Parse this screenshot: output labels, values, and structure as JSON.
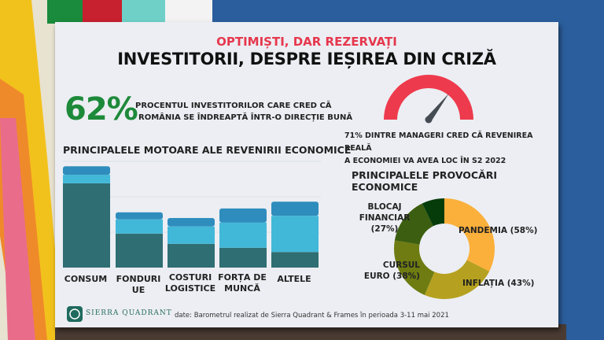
{
  "header": {
    "subtitle": "OPTIMIȘTI, DAR REZERVAȚI",
    "title": "INVESTITORII, DESPRE IEȘIREA DIN CRIZĂ"
  },
  "stat": {
    "value": "62%",
    "line1": "PROCENTUL INVESTITORILOR CARE CRED CĂ",
    "line2": "ROMÂNIA SE ÎNDREAPTĂ ÎNTR-O DIRECȚIE BUNĂ"
  },
  "gauge": {
    "value_percent": 71,
    "line1": "71% DINTRE MANAGERI CRED CĂ REVENIREA REALĂ",
    "line2": "A ECONOMIEI VA AVEA LOC ÎN  S2 2022",
    "color": "#ee3a4d",
    "needle_color": "#454b52"
  },
  "footer": {
    "logo_text": "SIERRA QUADRANT",
    "source": "date:  Barometrul realizat de Sierra Quadrant & Frames în perioada 3-11 mai 2021"
  },
  "chart_data": [
    {
      "type": "bar",
      "stacked": true,
      "title": "PRINCIPALELE MOTOARE ALE REVENIRII ECONOMICE",
      "categories": [
        "CONSUM",
        "FONDURI UE",
        "COSTURI LOGISTICE",
        "FORȚA DE MUNCĂ",
        "ALTELE"
      ],
      "series": [
        {
          "values": [
            2.38,
            0.96,
            0.67,
            0.56,
            0.44
          ],
          "color": "#2f6e72"
        },
        {
          "values": [
            0.24,
            0.4,
            0.49,
            0.71,
            1.02
          ],
          "color": "#42b8d8"
        },
        {
          "values": [
            0.24,
            0.2,
            0.24,
            0.4,
            0.4
          ],
          "color": "#2f8dbd"
        }
      ],
      "ylim": [
        0,
        3
      ],
      "grid": true
    },
    {
      "type": "pie",
      "donut": true,
      "title": "PRINCIPALELE PROVOCĂRI ECONOMICE",
      "slices": [
        {
          "label": "PANDEMIA  (58%)",
          "value": 58,
          "color": "#fbb03b"
        },
        {
          "label": "INFLAȚIA (43%)",
          "value": 43,
          "color": "#b5a11f"
        },
        {
          "label": "CURSUL EURO (38%)",
          "value": 38,
          "color": "#6e7c12"
        },
        {
          "label": "BLOCAJ FINANCIAR (27%)",
          "value": 27,
          "color": "#3c5e10"
        },
        {
          "label": "",
          "value": 13,
          "color": "#053c0a"
        }
      ]
    }
  ]
}
